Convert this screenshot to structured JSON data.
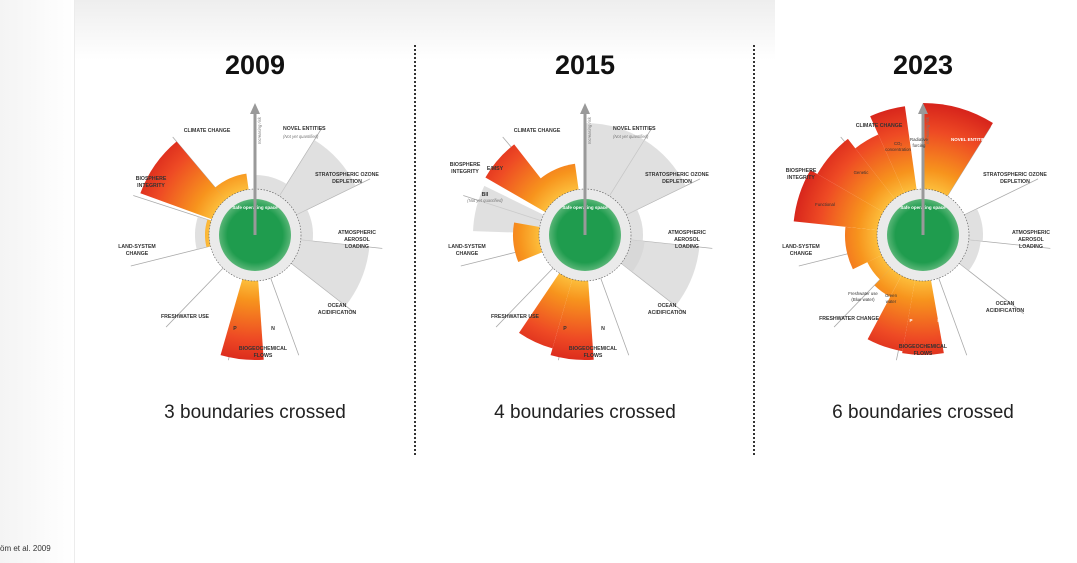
{
  "citation": "öm et al. 2009",
  "colors": {
    "safe_green": "#1f9c4e",
    "high_risk_red": "#d8261c",
    "zone_orange": "#f5a623",
    "unknown_grey": "#d6d6d6"
  },
  "common_labels": {
    "axis": "Increasing risk",
    "safe_space": "Safe operating space",
    "climate_change": "CLIMATE CHANGE",
    "novel_entities": "NOVEL ENTITIES",
    "not_quantified": "(Not yet quantified)",
    "ozone_1": "STRATOSPHERIC OZONE",
    "ozone_2": "DEPLETION",
    "aerosol_1": "ATMOSPHERIC",
    "aerosol_2": "AEROSOL",
    "aerosol_3": "LOADING",
    "ocean_1": "OCEAN",
    "ocean_2": "ACIDIFICATION",
    "bio_flows_1": "BIOGEOCHEMICAL",
    "bio_flows_2": "FLOWS",
    "p": "P",
    "n": "N",
    "freshwater_use": "FRESHWATER USE",
    "freshwater_change": "FRESHWATER CHANGE",
    "land_1": "LAND-SYSTEM",
    "land_2": "CHANGE",
    "biosphere_1": "BIOSPHERE",
    "biosphere_2": "INTEGRITY",
    "e_mdf": "E/MSY",
    "bii": "BII",
    "genetic": "Genetic",
    "functional": "Functional",
    "co2": "CO₂",
    "concentration": "concentration",
    "radiative_1": "Radiative",
    "radiative_2": "forcing",
    "blue_1": "Freshwater use",
    "blue_2": "(Blue water)",
    "green_1": "Green",
    "green_2": "water"
  },
  "panels": [
    {
      "year": "2009",
      "caption": "3 boundaries crossed"
    },
    {
      "year": "2015",
      "caption": "4 boundaries crossed"
    },
    {
      "year": "2023",
      "caption": "6 boundaries crossed"
    }
  ]
}
